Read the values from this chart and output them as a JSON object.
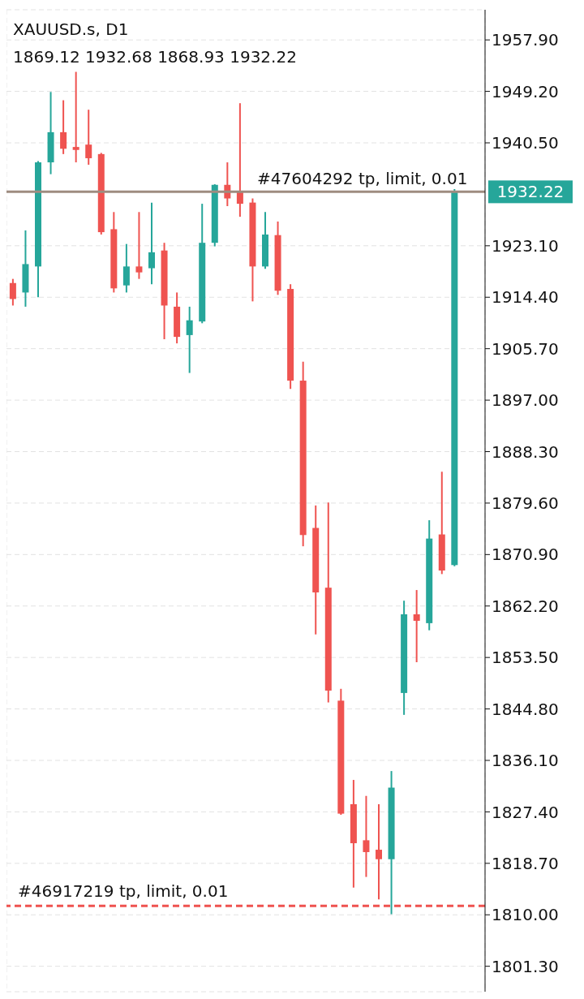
{
  "chart_data": {
    "type": "candlestick",
    "title": "XAUUSD.s, D1",
    "subtitle": "1869.12 1932.68 1868.93 1932.22",
    "categories": [
      null,
      null,
      null,
      null,
      null,
      null,
      null,
      null,
      null,
      null,
      null,
      null,
      null,
      null,
      null,
      null,
      null,
      null,
      null,
      null,
      null,
      null,
      null,
      null,
      null,
      null,
      null,
      null,
      null,
      null,
      null,
      null,
      null,
      null,
      null,
      null
    ],
    "ohlc": [
      [
        1916.8,
        1917.5,
        1913.0,
        1914.1
      ],
      [
        1915.2,
        1925.7,
        1912.8,
        1920.0
      ],
      [
        1919.6,
        1937.4,
        1914.4,
        1937.2
      ],
      [
        1937.2,
        1949.1,
        1935.2,
        1942.3
      ],
      [
        1942.3,
        1947.7,
        1938.6,
        1939.5
      ],
      [
        1939.8,
        1952.5,
        1937.2,
        1939.3
      ],
      [
        1940.2,
        1946.1,
        1936.8,
        1937.9
      ],
      [
        1938.6,
        1938.8,
        1925.0,
        1925.4
      ],
      [
        1925.9,
        1928.8,
        1915.2,
        1915.9
      ],
      [
        1916.4,
        1923.4,
        1915.2,
        1919.6
      ],
      [
        1919.6,
        1928.8,
        1917.5,
        1918.6
      ],
      [
        1919.3,
        1930.4,
        1916.6,
        1922.0
      ],
      [
        1922.3,
        1923.6,
        1907.3,
        1913.0
      ],
      [
        1912.8,
        1915.2,
        1906.6,
        1907.7
      ],
      [
        1908.0,
        1912.8,
        1901.6,
        1910.5
      ],
      [
        1910.3,
        1930.2,
        1910.0,
        1923.6
      ],
      [
        1923.6,
        1933.5,
        1923.0,
        1933.4
      ],
      [
        1933.4,
        1937.2,
        1929.8,
        1931.1
      ],
      [
        1932.2,
        1947.2,
        1928.0,
        1930.2
      ],
      [
        1930.4,
        1931.1,
        1913.7,
        1919.6
      ],
      [
        1919.6,
        1928.8,
        1919.2,
        1925.0
      ],
      [
        1924.9,
        1927.2,
        1914.8,
        1915.5
      ],
      [
        1915.8,
        1916.6,
        1898.9,
        1900.3
      ],
      [
        1900.3,
        1903.5,
        1872.3,
        1874.2
      ],
      [
        1875.4,
        1879.2,
        1857.4,
        1864.5
      ],
      [
        1865.3,
        1879.7,
        1845.9,
        1847.9
      ],
      [
        1846.2,
        1848.2,
        1826.9,
        1827.1
      ],
      [
        1828.7,
        1832.8,
        1814.6,
        1822.1
      ],
      [
        1822.6,
        1830.1,
        1816.4,
        1820.6
      ],
      [
        1821.0,
        1828.7,
        1812.6,
        1819.4
      ],
      [
        1819.4,
        1834.3,
        1810.1,
        1831.5
      ],
      [
        1847.5,
        1863.1,
        1843.8,
        1860.8
      ],
      [
        1860.8,
        1864.9,
        1852.7,
        1859.7
      ],
      [
        1859.3,
        1876.7,
        1858.1,
        1873.6
      ],
      [
        1874.3,
        1884.9,
        1867.6,
        1868.2
      ],
      [
        1869.12,
        1932.68,
        1868.93,
        1932.22
      ]
    ],
    "colors": [
      "#ef5350",
      "#26a69a",
      "#26a69a",
      "#26a69a",
      "#ef5350",
      "#ef5350",
      "#ef5350",
      "#ef5350",
      "#ef5350",
      "#26a69a",
      "#ef5350",
      "#26a69a",
      "#ef5350",
      "#ef5350",
      "#26a69a",
      "#26a69a",
      "#26a69a",
      "#ef5350",
      "#ef5350",
      "#ef5350",
      "#26a69a",
      "#ef5350",
      "#ef5350",
      "#ef5350",
      "#ef5350",
      "#ef5350",
      "#ef5350",
      "#ef5350",
      "#ef5350",
      "#ef5350",
      "#26a69a",
      "#26a69a",
      "#ef5350",
      "#26a69a",
      "#ef5350",
      "#26a69a"
    ],
    "ylim": [
      1797,
      1963
    ],
    "yticks": [
      {
        "value": 1801.3,
        "label": "1801.30"
      },
      {
        "value": 1810,
        "label": "1810.00"
      },
      {
        "value": 1818.7,
        "label": "1818.70"
      },
      {
        "value": 1827.4,
        "label": "1827.40"
      },
      {
        "value": 1836.1,
        "label": "1836.10"
      },
      {
        "value": 1844.8,
        "label": "1844.80"
      },
      {
        "value": 1853.5,
        "label": "1853.50"
      },
      {
        "value": 1862.2,
        "label": "1862.20"
      },
      {
        "value": 1870.9,
        "label": "1870.90"
      },
      {
        "value": 1879.6,
        "label": "1879.60"
      },
      {
        "value": 1888.3,
        "label": "1888.30"
      },
      {
        "value": 1897,
        "label": "1897.00"
      },
      {
        "value": 1905.7,
        "label": "1905.70"
      },
      {
        "value": 1914.4,
        "label": "1914.40"
      },
      {
        "value": 1923.1,
        "label": "1923.10"
      },
      {
        "value": 1940.5,
        "label": "1940.50"
      },
      {
        "value": 1949.2,
        "label": "1949.20"
      },
      {
        "value": 1957.9,
        "label": "1957.90"
      }
    ],
    "tick_labels": "y",
    "grid": true,
    "ref_lines": [
      {
        "axis": "y",
        "value": 1932.22,
        "label": "1932.22",
        "color": "#9e8c80",
        "line_style": "solid"
      },
      {
        "axis": "y",
        "value": 1811.5,
        "label": "#46917219 tp, limit, 0.01",
        "color": "#ef5350",
        "line_style": "dashed"
      }
    ],
    "annotations": [
      "#47604292 tp, limit, 0.01"
    ]
  }
}
